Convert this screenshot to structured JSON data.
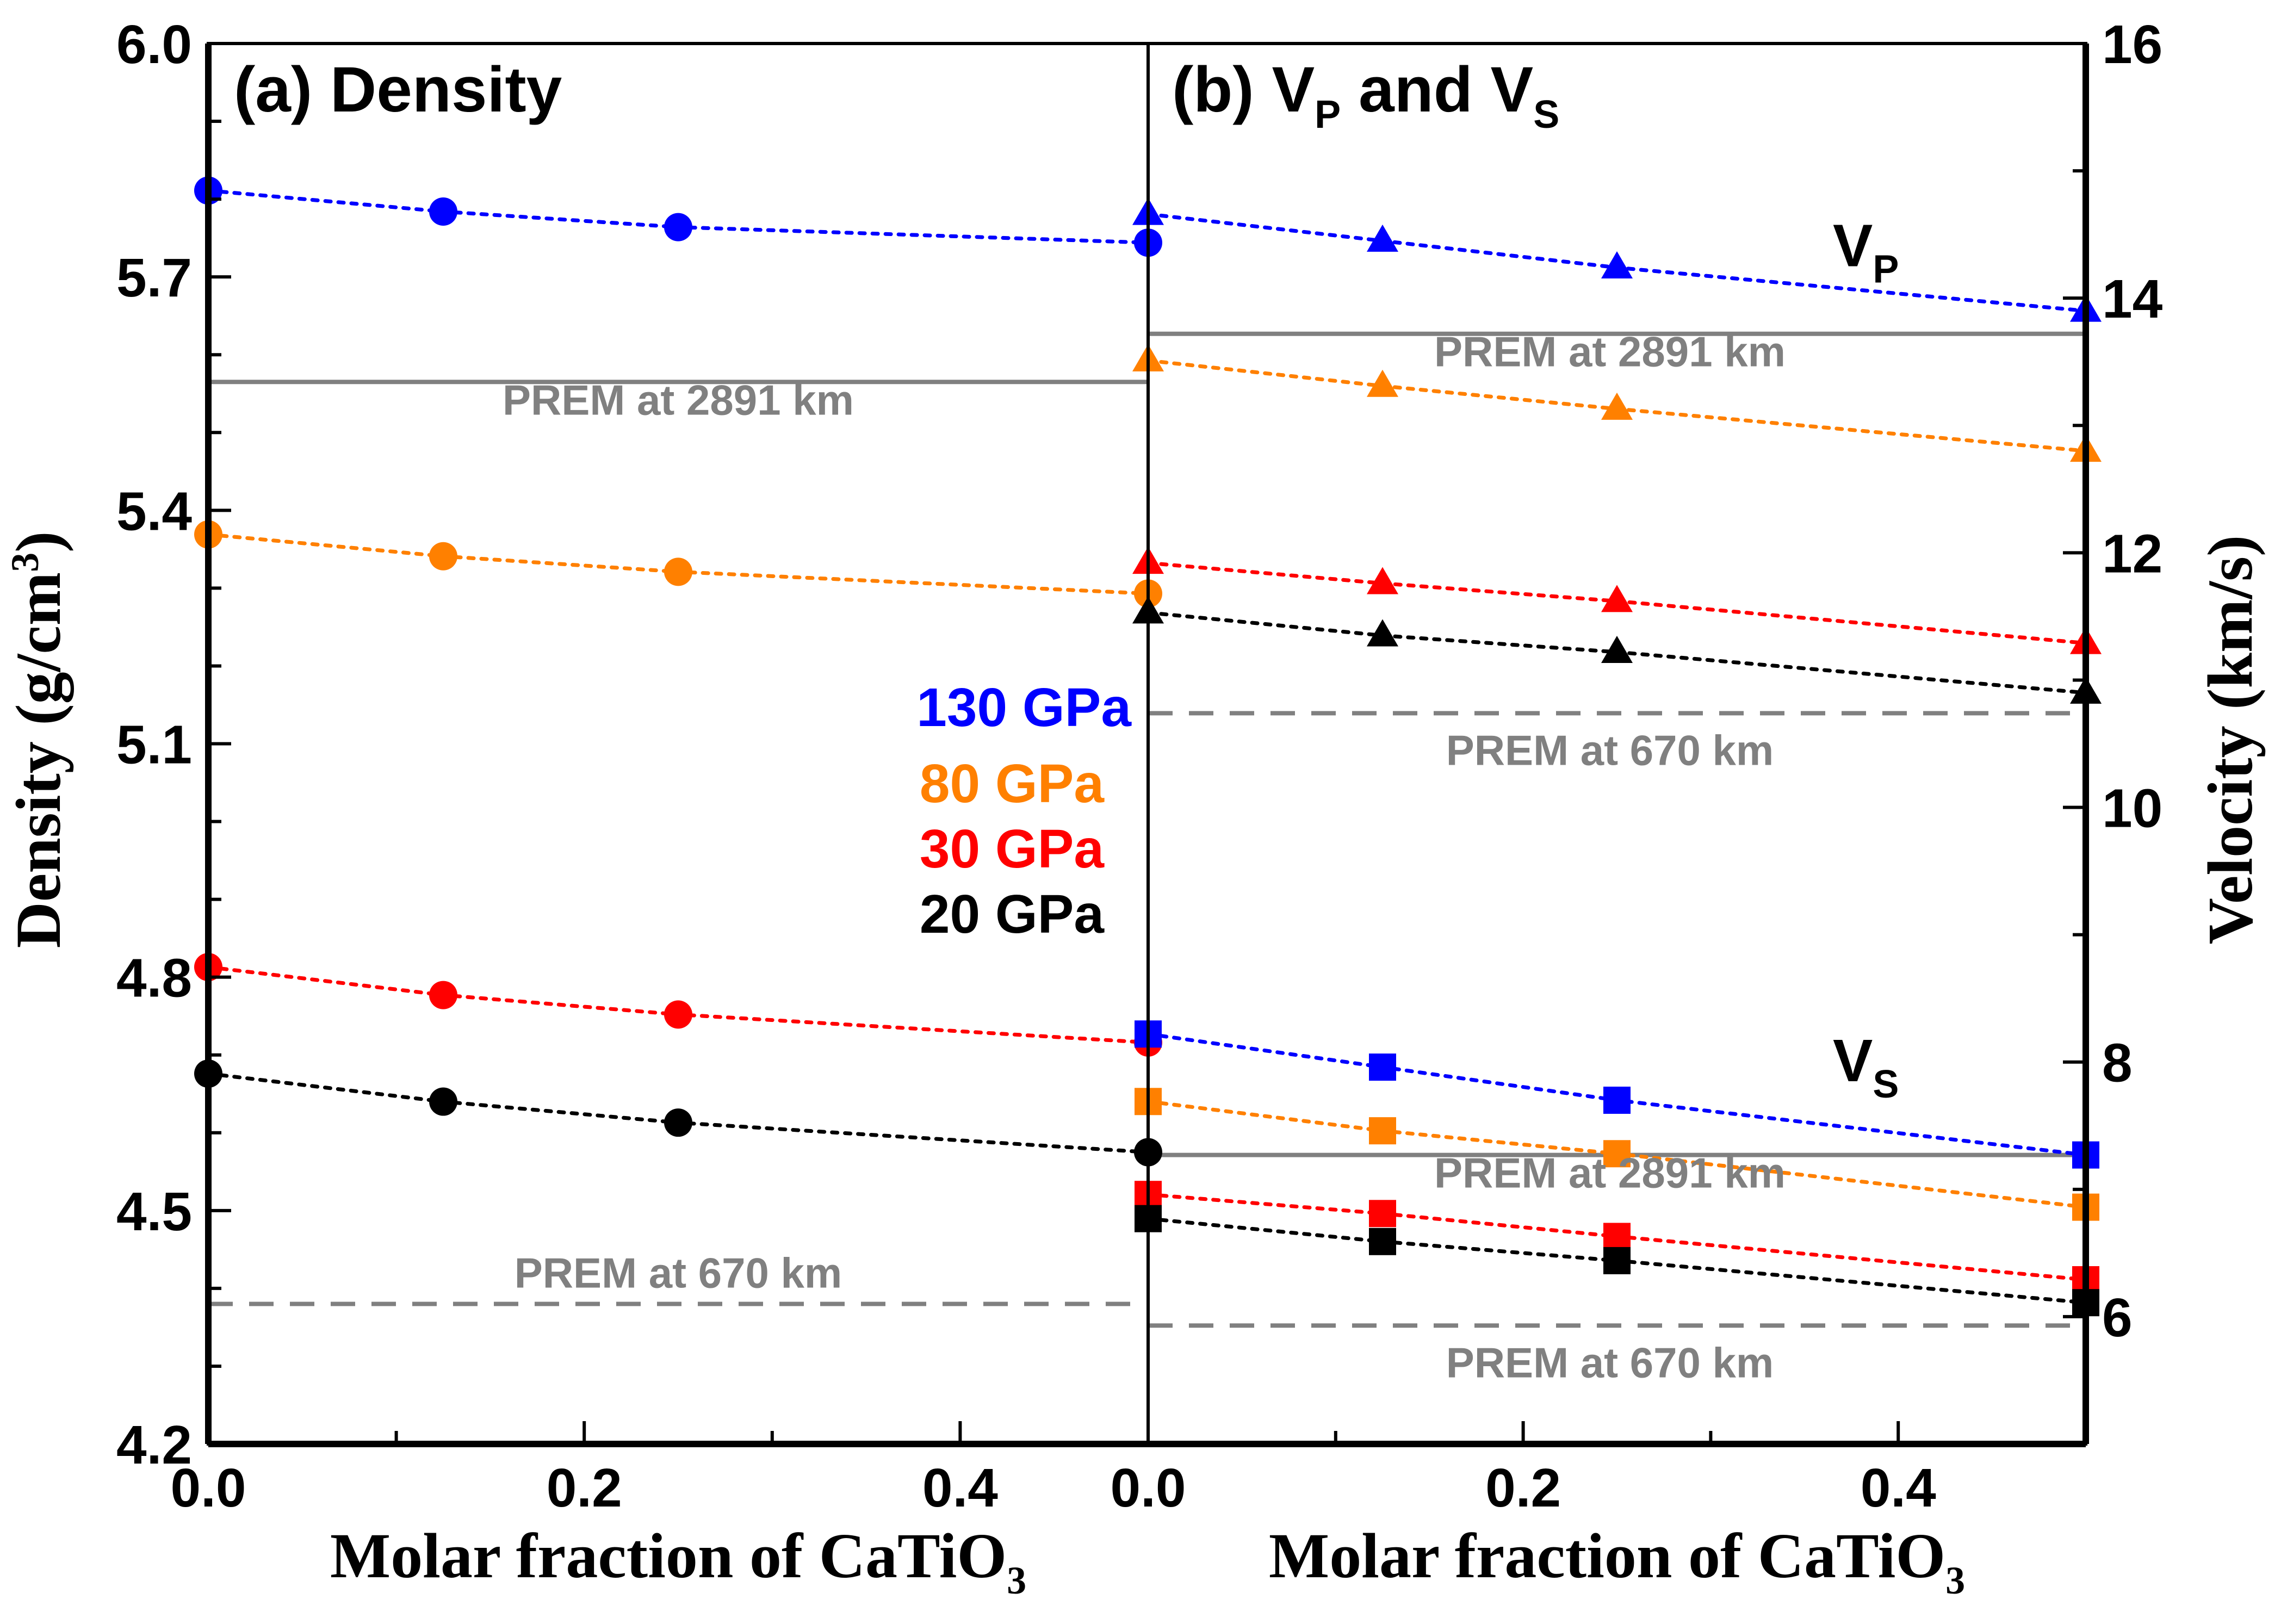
{
  "chart_data": [
    {
      "panel": "a",
      "type": "scatter",
      "title": "(a) Density",
      "xlabel": "Molar fraction of CaTiO3",
      "ylabel": "Density (g/cm3)",
      "xlim": [
        0,
        0.5
      ],
      "ylim": [
        4.2,
        6.0
      ],
      "xticks": [
        0.0,
        0.2,
        0.4
      ],
      "xtick_labels": [
        "0.0",
        "0.2",
        "0.4"
      ],
      "xminor": [
        0.1,
        0.3
      ],
      "yticks": [
        4.2,
        4.5,
        4.8,
        5.1,
        5.4,
        5.7,
        6.0
      ],
      "ytick_labels": [
        "4.2",
        "4.5",
        "4.8",
        "5.1",
        "5.4",
        "5.7",
        "6.0"
      ],
      "yminor_step": 0.1,
      "axis_side": "left",
      "grid": false,
      "x": [
        0,
        0.125,
        0.25,
        0.5
      ],
      "series": [
        {
          "name": "130 GPa",
          "color": "#0000FF",
          "marker": "circle",
          "values": [
            5.811,
            5.784,
            5.764,
            5.744
          ]
        },
        {
          "name": "80 GPa",
          "color": "#FF8000",
          "marker": "circle",
          "values": [
            5.369,
            5.341,
            5.321,
            5.293
          ]
        },
        {
          "name": "30 GPa",
          "color": "#FF0000",
          "marker": "circle",
          "values": [
            4.813,
            4.777,
            4.752,
            4.716
          ]
        },
        {
          "name": "20 GPa",
          "color": "#000000",
          "marker": "circle",
          "values": [
            4.676,
            4.64,
            4.613,
            4.575
          ]
        }
      ],
      "reference_lines": [
        {
          "label": "PREM at 2891 km",
          "value": 5.565,
          "style": "solid"
        },
        {
          "label": "PREM at 670 km",
          "value": 4.38,
          "style": "dashed"
        }
      ]
    },
    {
      "panel": "b",
      "type": "scatter",
      "title_main": "(b) V",
      "title_sub1": "P",
      "title_mid": " and V",
      "title_sub2": "S",
      "xlabel": "Molar fraction of CaTiO3",
      "ylabel": "Velocity (km/s)",
      "xlim": [
        0,
        0.5
      ],
      "ylim": [
        5,
        16
      ],
      "xticks": [
        0.0,
        0.2,
        0.4
      ],
      "xtick_labels": [
        "0.0",
        "0.2",
        "0.4"
      ],
      "xminor": [
        0.1,
        0.3
      ],
      "yticks": [
        6,
        8,
        10,
        12,
        14,
        16
      ],
      "ytick_labels": [
        "6",
        "8",
        "10",
        "12",
        "14",
        "16"
      ],
      "yminor_step": 1,
      "axis_side": "right",
      "grid": false,
      "x": [
        0,
        0.125,
        0.25,
        0.5
      ],
      "series": [
        {
          "name": "Vp 130 GPa",
          "color": "#0000FF",
          "marker": "triangle",
          "values": [
            14.66,
            14.45,
            14.24,
            13.9
          ]
        },
        {
          "name": "Vp 80 GPa",
          "color": "#FF8000",
          "marker": "triangle",
          "values": [
            13.51,
            13.31,
            13.13,
            12.8
          ]
        },
        {
          "name": "Vp 30 GPa",
          "color": "#FF0000",
          "marker": "triangle",
          "values": [
            11.92,
            11.76,
            11.62,
            11.29
          ]
        },
        {
          "name": "Vp 20 GPa",
          "color": "#000000",
          "marker": "triangle",
          "values": [
            11.53,
            11.35,
            11.22,
            10.9
          ]
        },
        {
          "name": "Vs 130 GPa",
          "color": "#0000FF",
          "marker": "square",
          "values": [
            8.22,
            7.96,
            7.7,
            7.27
          ]
        },
        {
          "name": "Vs 80 GPa",
          "color": "#FF8000",
          "marker": "square",
          "values": [
            7.69,
            7.46,
            7.28,
            6.86
          ]
        },
        {
          "name": "Vs 30 GPa",
          "color": "#FF0000",
          "marker": "square",
          "values": [
            6.96,
            6.81,
            6.63,
            6.29
          ]
        },
        {
          "name": "Vs 20 GPa",
          "color": "#000000",
          "marker": "square",
          "values": [
            6.77,
            6.59,
            6.44,
            6.11
          ]
        }
      ],
      "reference_lines": [
        {
          "label": "PREM at 2891 km",
          "value": 13.72,
          "style": "solid",
          "group": "Vp"
        },
        {
          "label": "PREM at 670 km",
          "value": 10.74,
          "style": "dashed",
          "group": "Vp"
        },
        {
          "label": "PREM at 2891 km",
          "value": 7.27,
          "style": "solid",
          "group": "Vs"
        },
        {
          "label": "PREM at 670 km",
          "value": 5.93,
          "style": "dashed",
          "group": "Vs"
        }
      ],
      "annotations": [
        {
          "main": "V",
          "sub": "P",
          "anchor_value": 14.25
        },
        {
          "main": "V",
          "sub": "S",
          "anchor_value": 7.85
        }
      ]
    }
  ],
  "legend": {
    "placement": "center-left of panel b boundary",
    "items": [
      {
        "label": "130 GPa",
        "color": "#0000FF"
      },
      {
        "label": "80 GPa",
        "color": "#FF8000"
      },
      {
        "label": "30 GPa",
        "color": "#FF0000"
      },
      {
        "label": "20 GPa",
        "color": "#000000"
      }
    ]
  },
  "axis_titles": {
    "x_main": "Molar fraction of CaTiO",
    "x_sub": "3",
    "y_left_main": "Density (g/cm",
    "y_left_sup": "3",
    "y_left_end": ")",
    "y_right": "Velocity (km/s)"
  },
  "panel_a_title": "(a) Density"
}
